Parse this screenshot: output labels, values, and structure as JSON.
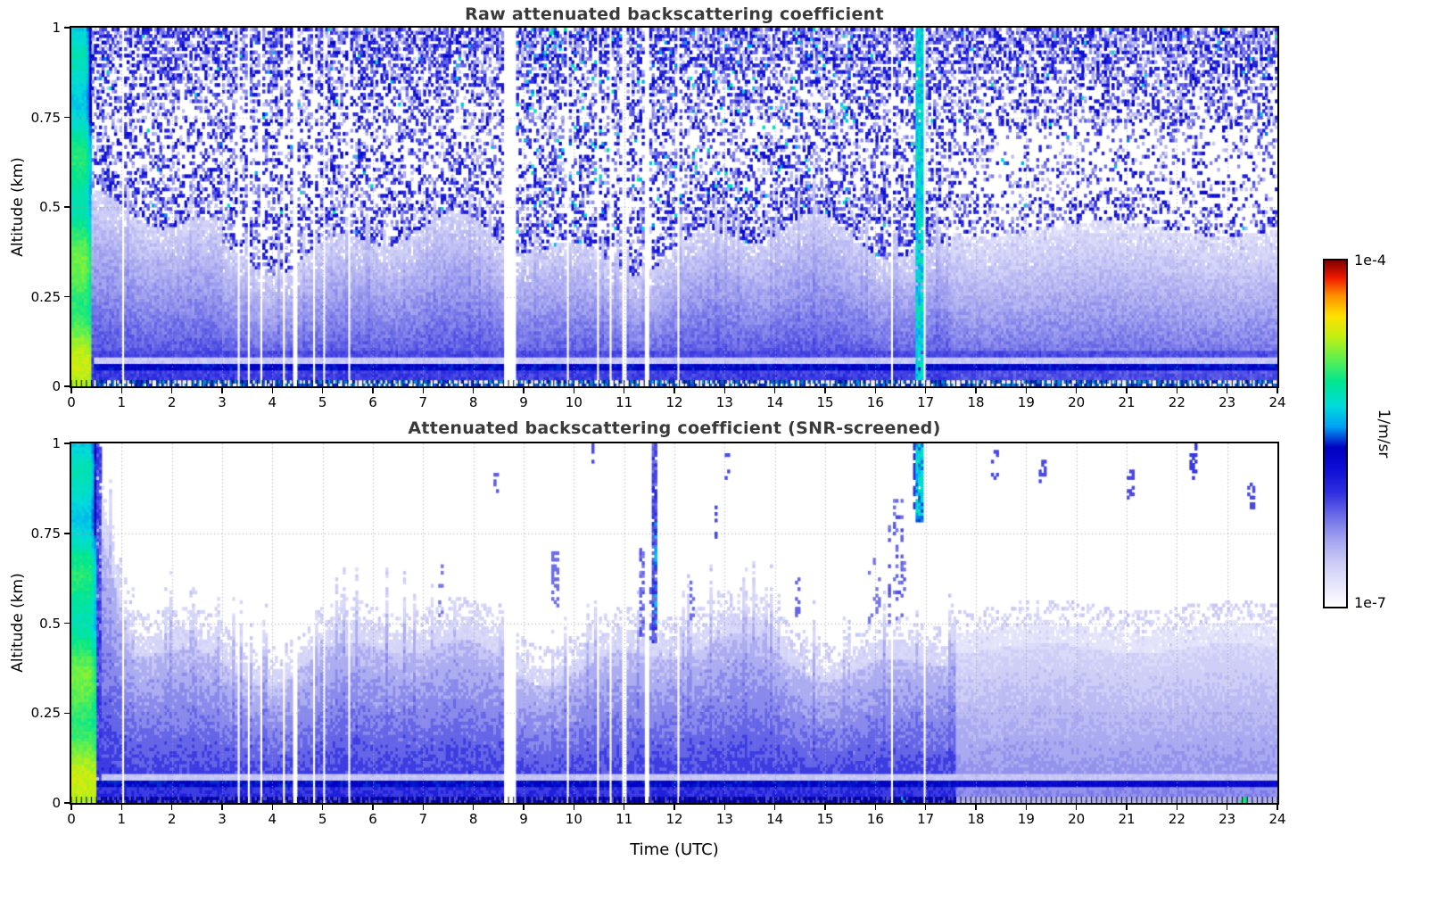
{
  "colorbar": {
    "max_label": "1e-4",
    "min_label": "1e-7",
    "unit": "1/m/sr",
    "scale": "log"
  },
  "colormap": [
    [
      0.0,
      "#ffffff"
    ],
    [
      0.05,
      "#eaeafc"
    ],
    [
      0.12,
      "#cfcff7"
    ],
    [
      0.19,
      "#a6a6f0"
    ],
    [
      0.26,
      "#6e6ee8"
    ],
    [
      0.33,
      "#2e2ee0"
    ],
    [
      0.4,
      "#0d0dd6"
    ],
    [
      0.46,
      "#0000bf"
    ],
    [
      0.52,
      "#00a0f5"
    ],
    [
      0.58,
      "#00dcdc"
    ],
    [
      0.65,
      "#00e690"
    ],
    [
      0.72,
      "#66f04a"
    ],
    [
      0.78,
      "#c3ef12"
    ],
    [
      0.84,
      "#ffe000"
    ],
    [
      0.9,
      "#ff8c00"
    ],
    [
      0.95,
      "#f01800"
    ],
    [
      1.0,
      "#7f0000"
    ]
  ],
  "gaps": [
    [
      1.0,
      1.04
    ],
    [
      3.28,
      3.33
    ],
    [
      3.52,
      3.56
    ],
    [
      3.74,
      3.78
    ],
    [
      4.18,
      4.24
    ],
    [
      4.42,
      4.48
    ],
    [
      4.58,
      4.62
    ],
    [
      4.8,
      4.84
    ],
    [
      5.02,
      5.06
    ],
    [
      5.5,
      5.53
    ],
    [
      8.58,
      8.84
    ],
    [
      9.86,
      9.9
    ],
    [
      10.44,
      10.52
    ],
    [
      10.72,
      10.76
    ],
    [
      10.96,
      11.04
    ],
    [
      11.42,
      11.5
    ],
    [
      11.68,
      11.72
    ],
    [
      12.06,
      12.1
    ],
    [
      16.3,
      16.33
    ],
    [
      16.96,
      17.0
    ],
    [
      17.08,
      17.12
    ],
    [
      18.38,
      18.42
    ]
  ],
  "chart_data": [
    {
      "type": "heatmap",
      "title": "Raw attenuated backscattering coefficient",
      "xlabel": "",
      "ylabel": "Altitude (km)",
      "xlim": [
        0,
        24
      ],
      "ylim": [
        0,
        1
      ],
      "xticks": [
        0,
        1,
        2,
        3,
        4,
        5,
        6,
        7,
        8,
        9,
        10,
        11,
        12,
        13,
        14,
        15,
        16,
        17,
        18,
        19,
        20,
        21,
        22,
        23,
        24
      ],
      "ytick_values": [
        0,
        0.25,
        0.5,
        0.75,
        1
      ],
      "ytick_labels": [
        "0",
        "0.25",
        "0.5",
        "0.75",
        "1"
      ],
      "grid": "dotted",
      "value_scale": "log",
      "value_min": "1e-7",
      "value_max": "1e-4",
      "units": "1/m/sr",
      "description": "Noisy speckle at all altitudes; bright green-yellow instrument band near 0 UTC; solid blue aerosol layer below ~0.45 km; dark blue line near 0.05 km with pale band above it; white data-gap columns; green precipitation streak near 16.85 UTC; enhanced cyan speckle 9-15 UTC aloft.",
      "render": {
        "mode": "raw",
        "seed": 1337,
        "n_time": 480,
        "n_alt": 110,
        "features": [
          {
            "t0": 16.8,
            "t1": 16.93,
            "z0": 0.02,
            "z1": 1.0,
            "v": 0.58,
            "p": 0.95,
            "j": 0.12
          }
        ],
        "cyan_regions": [
          {
            "t0": 8.8,
            "t1": 15.5,
            "z0": 0.5,
            "p": 0.05
          },
          {
            "t0": 9.0,
            "t1": 10.6,
            "z0": 0.55,
            "p": 0.09
          }
        ]
      }
    },
    {
      "type": "heatmap",
      "title": "Attenuated backscattering coefficient (SNR-screened)",
      "xlabel": "Time (UTC)",
      "ylabel": "Altitude (km)",
      "xlim": [
        0,
        24
      ],
      "ylim": [
        0,
        1
      ],
      "xticks": [
        0,
        1,
        2,
        3,
        4,
        5,
        6,
        7,
        8,
        9,
        10,
        11,
        12,
        13,
        14,
        15,
        16,
        17,
        18,
        19,
        20,
        21,
        22,
        23,
        24
      ],
      "ytick_values": [
        0,
        0.25,
        0.5,
        0.75,
        1
      ],
      "ytick_labels": [
        "0",
        "0.25",
        "0.5",
        "0.75",
        "1"
      ],
      "grid": "dotted",
      "value_scale": "log",
      "value_min": "1e-7",
      "value_max": "1e-4",
      "units": "1/m/sr",
      "description": "SNR-screened field: layered boundary-layer aerosol below a fluctuating ~0.45-0.55 km top, white above; plume to 1 km near 11.6 UTC with cyan core; cyan-green cloud streak 16.8-17 UTC above 0.78 km; lighter smoother field after ~17.6 UTC; dark line near 0.05 km; green speck near 23.3 UTC at ground.",
      "render": {
        "mode": "screened",
        "seed": 7707,
        "n_time": 480,
        "n_alt": 110,
        "features": [
          {
            "t0": 0.5,
            "t1": 0.58,
            "z0": 0.0,
            "z1": 1.0,
            "v": 0.3,
            "p": 0.9,
            "j": 0.08
          },
          {
            "t0": 11.56,
            "t1": 11.67,
            "z0": 0.45,
            "z1": 1.0,
            "v": 0.3,
            "p": 0.85,
            "j": 0.1
          },
          {
            "t0": 11.58,
            "t1": 11.64,
            "z0": 0.5,
            "z1": 0.78,
            "v": 0.52,
            "p": 0.6,
            "j": 0.08
          },
          {
            "t0": 11.3,
            "t1": 11.44,
            "z0": 0.45,
            "z1": 0.72,
            "v": 0.26,
            "p": 0.5,
            "j": 0.08
          },
          {
            "t0": 11.5,
            "t1": 11.56,
            "z0": 0.45,
            "z1": 0.6,
            "v": 0.28,
            "p": 0.5
          },
          {
            "t0": 12.3,
            "t1": 12.42,
            "z0": 0.5,
            "z1": 0.62,
            "v": 0.26,
            "p": 0.3
          },
          {
            "t0": 12.78,
            "t1": 12.87,
            "z0": 0.74,
            "z1": 0.84,
            "v": 0.3,
            "p": 0.4
          },
          {
            "t0": 13.02,
            "t1": 13.1,
            "z0": 0.9,
            "z1": 1.0,
            "v": 0.3,
            "p": 0.35
          },
          {
            "t0": 16.78,
            "t1": 16.96,
            "z0": 0.78,
            "z1": 1.0,
            "v": 0.55,
            "p": 0.95,
            "j": 0.15
          },
          {
            "t0": 16.73,
            "t1": 16.78,
            "z0": 0.82,
            "z1": 1.0,
            "v": 0.33,
            "p": 0.7
          },
          {
            "t0": 16.25,
            "t1": 16.62,
            "z0": 0.5,
            "z1": 0.85,
            "v": 0.27,
            "p": 0.22,
            "j": 0.06
          },
          {
            "t0": 15.85,
            "t1": 16.1,
            "z0": 0.5,
            "z1": 0.68,
            "v": 0.25,
            "p": 0.2
          },
          {
            "t0": 14.38,
            "t1": 14.5,
            "z0": 0.52,
            "z1": 0.64,
            "v": 0.27,
            "p": 0.3
          },
          {
            "t0": 9.55,
            "t1": 9.68,
            "z0": 0.55,
            "z1": 0.72,
            "v": 0.26,
            "p": 0.35
          },
          {
            "t0": 8.42,
            "t1": 8.5,
            "z0": 0.85,
            "z1": 0.92,
            "v": 0.28,
            "p": 0.3
          },
          {
            "t0": 7.28,
            "t1": 7.42,
            "z0": 0.52,
            "z1": 0.66,
            "v": 0.25,
            "p": 0.35
          },
          {
            "t0": 10.35,
            "t1": 10.42,
            "z0": 0.93,
            "z1": 1.0,
            "v": 0.3,
            "p": 0.3
          },
          {
            "t0": 18.32,
            "t1": 18.45,
            "z0": 0.9,
            "z1": 0.98,
            "v": 0.3,
            "p": 0.35
          },
          {
            "t0": 19.25,
            "t1": 19.38,
            "z0": 0.87,
            "z1": 0.95,
            "v": 0.3,
            "p": 0.35
          },
          {
            "t0": 21.0,
            "t1": 21.15,
            "z0": 0.85,
            "z1": 0.93,
            "v": 0.3,
            "p": 0.4
          },
          {
            "t0": 22.25,
            "t1": 22.42,
            "z0": 0.9,
            "z1": 1.0,
            "v": 0.32,
            "p": 0.5
          },
          {
            "t0": 23.4,
            "t1": 23.55,
            "z0": 0.82,
            "z1": 0.9,
            "v": 0.3,
            "p": 0.4
          },
          {
            "t0": 16.5,
            "t1": 16.62,
            "z0": 0.0,
            "z1": 0.02,
            "v": 0.55,
            "p": 0.8
          },
          {
            "t0": 23.25,
            "t1": 23.38,
            "z0": 0.0,
            "z1": 0.016,
            "v": 0.66,
            "p": 0.9
          }
        ]
      }
    }
  ]
}
